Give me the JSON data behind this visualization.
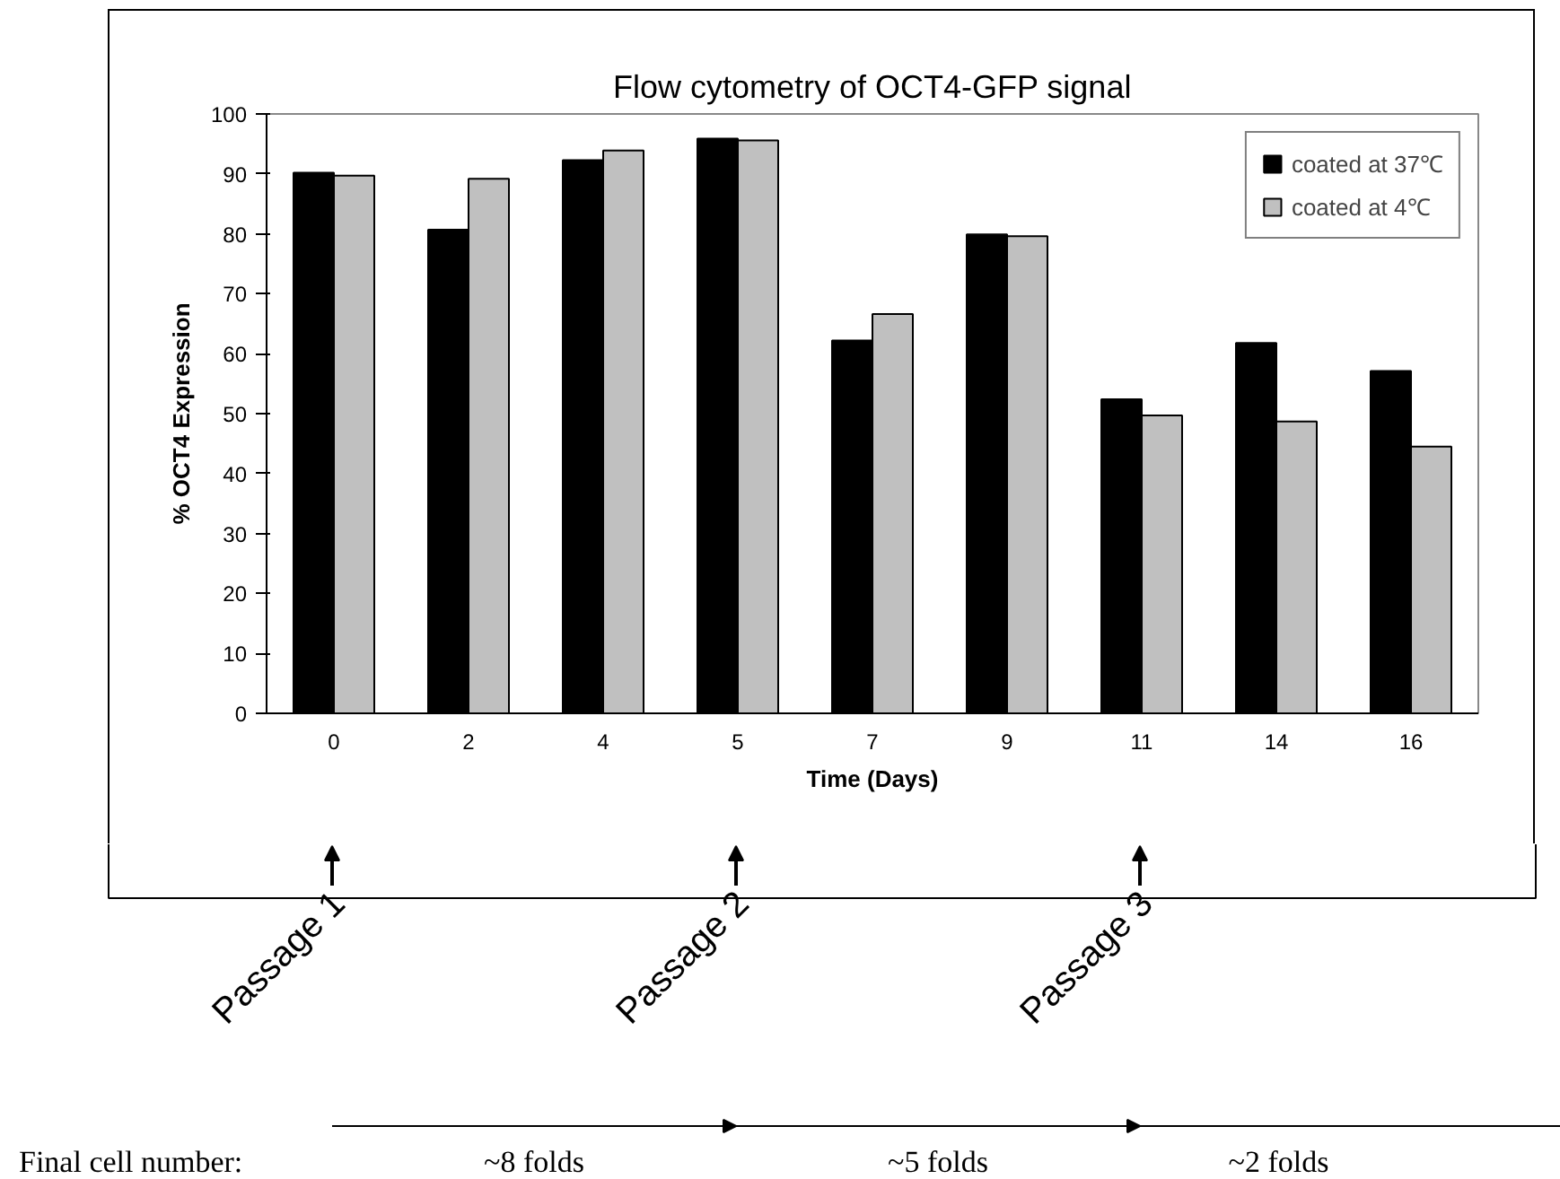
{
  "chart_data": {
    "type": "bar",
    "title": "Flow cytometry of OCT4-GFP signal",
    "xlabel": "Time (Days)",
    "ylabel": "% OCT4 Expression",
    "categories": [
      "0",
      "2",
      "4",
      "5",
      "7",
      "9",
      "11",
      "14",
      "16"
    ],
    "series": [
      {
        "name": "coated at 37℃",
        "color": "#000000",
        "values": [
          90.2,
          80.7,
          92.3,
          95.9,
          62.2,
          79.9,
          52.4,
          61.8,
          57.1
        ]
      },
      {
        "name": "coated at 4℃",
        "color": "#c0c0c0",
        "values": [
          89.7,
          89.2,
          93.9,
          95.6,
          66.6,
          79.6,
          49.7,
          48.7,
          44.5
        ]
      }
    ],
    "ylim": [
      0,
      100
    ],
    "yticks": [
      0,
      10,
      20,
      30,
      40,
      50,
      60,
      70,
      80,
      90,
      100
    ],
    "grid": false,
    "legend": "top right",
    "annotations": [
      "Passage 1",
      "Passage 2",
      "Passage 3",
      "Final cell number:",
      "~8 folds",
      "~5 folds",
      "~2 folds"
    ]
  }
}
